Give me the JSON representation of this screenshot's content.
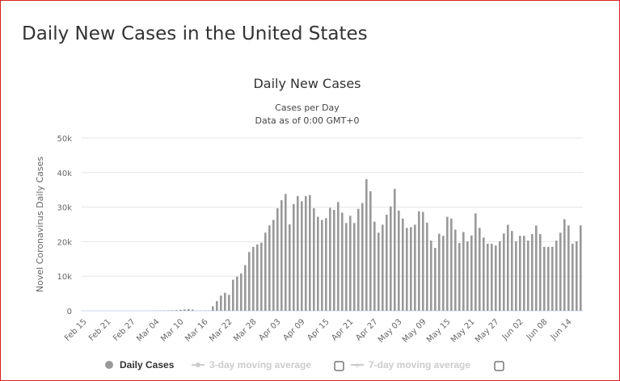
{
  "page": {
    "title": "Daily New Cases in the United States"
  },
  "chart_data": {
    "type": "bar",
    "title": "Daily New Cases",
    "subtitle": "Cases per Day",
    "subtitle2": "Data as of 0:00 GMT+0",
    "ylabel": "Novel Coronavirus Daily Cases",
    "ylim": [
      0,
      50000
    ],
    "yticks": [
      0,
      10000,
      20000,
      30000,
      40000,
      50000
    ],
    "ytick_labels": [
      "0",
      "10k",
      "20k",
      "30k",
      "40k",
      "50k"
    ],
    "start_date": "Feb 15",
    "xtick_labels": [
      "Feb 15",
      "Feb 21",
      "Feb 27",
      "Mar 04",
      "Mar 10",
      "Mar 16",
      "Mar 22",
      "Mar 28",
      "Apr 03",
      "Apr 09",
      "Apr 15",
      "Apr 21",
      "Apr 27",
      "May 03",
      "May 09",
      "May 15",
      "May 21",
      "May 27",
      "Jun 02",
      "Jun 08",
      "Jun 14"
    ],
    "grid": true,
    "bar_color": "#999999",
    "values": [
      0,
      0,
      0,
      0,
      0,
      0,
      0,
      0,
      0,
      0,
      0,
      0,
      0,
      0,
      0,
      0,
      20,
      30,
      30,
      40,
      60,
      100,
      120,
      200,
      270,
      400,
      500,
      350,
      30,
      50,
      70,
      70,
      1300,
      2800,
      4400,
      5200,
      4600,
      9000,
      9900,
      10800,
      13200,
      17000,
      18500,
      19200,
      19700,
      22600,
      24700,
      26300,
      29700,
      32000,
      33800,
      25000,
      30900,
      33200,
      31700,
      33200,
      33500,
      29700,
      27200,
      26300,
      26800,
      29800,
      29200,
      31500,
      28400,
      25400,
      27500,
      25400,
      29500,
      31200,
      38100,
      34600,
      25800,
      22600,
      24900,
      27800,
      30200,
      35300,
      29000,
      26700,
      24000,
      24200,
      24900,
      28800,
      28600,
      25500,
      20300,
      18200,
      22300,
      21700,
      27200,
      26700,
      23500,
      19600,
      22800,
      20100,
      21800,
      28200,
      24000,
      21200,
      19400,
      19400,
      18900,
      20100,
      22400,
      24900,
      23100,
      20100,
      21700,
      21700,
      20300,
      22200,
      24700,
      22200,
      18500,
      18500,
      18500,
      20300,
      22600,
      26500,
      24700,
      19400,
      20100,
      24700
    ],
    "legend": {
      "placement": "bottom",
      "items": [
        {
          "label": "Daily Cases",
          "active": true,
          "color": "#999999"
        },
        {
          "label": "3-day moving average",
          "active": false,
          "color": "#cccccc"
        },
        {
          "label": "7-day moving average",
          "active": false,
          "color": "#cccccc"
        }
      ]
    }
  }
}
